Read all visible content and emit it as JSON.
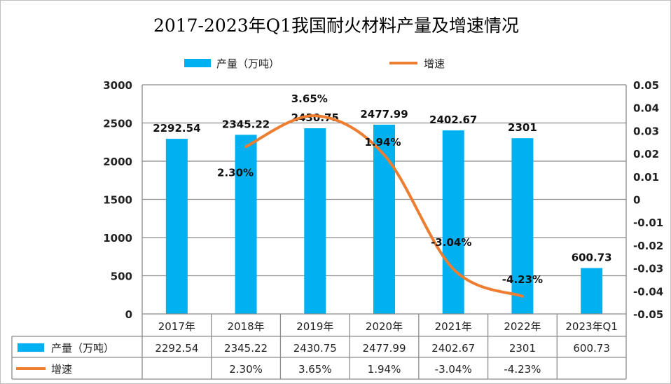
{
  "chart_data": {
    "type": "bar+line",
    "title": "2017-2023年Q1我国耐火材料产量及增速情况",
    "categories": [
      "2017年",
      "2018年",
      "2019年",
      "2020年",
      "2021年",
      "2022年",
      "2023年Q1"
    ],
    "series": [
      {
        "name": "产量（万吨）",
        "type": "bar",
        "axis": "left",
        "color": "#00b0f0",
        "values": [
          2292.54,
          2345.22,
          2430.75,
          2477.99,
          2402.67,
          2301,
          600.73
        ],
        "labels": [
          "2292.54",
          "2345.22",
          "2430.75",
          "2477.99",
          "2402.67",
          "2301",
          "600.73"
        ]
      },
      {
        "name": "增速",
        "type": "line",
        "axis": "right",
        "color": "#ed7d31",
        "smooth": true,
        "values": [
          null,
          0.023,
          0.0365,
          0.0194,
          -0.0304,
          -0.0423,
          null
        ],
        "labels": [
          "",
          "2.30%",
          "3.65%",
          "1.94%",
          "-3.04%",
          "-4.23%",
          ""
        ]
      }
    ],
    "y_left": {
      "range": [
        0,
        3000
      ],
      "ticks": [
        "0",
        "500",
        "1000",
        "1500",
        "2000",
        "2500",
        "3000"
      ]
    },
    "y_right": {
      "range": [
        -0.05,
        0.05
      ],
      "ticks": [
        "-0.05",
        "-0.04",
        "-0.03",
        "-0.02",
        "-0.01",
        "0",
        "0.01",
        "0.02",
        "0.03",
        "0.04",
        "0.05"
      ]
    },
    "grid": true,
    "legend": "top",
    "data_table": true
  }
}
